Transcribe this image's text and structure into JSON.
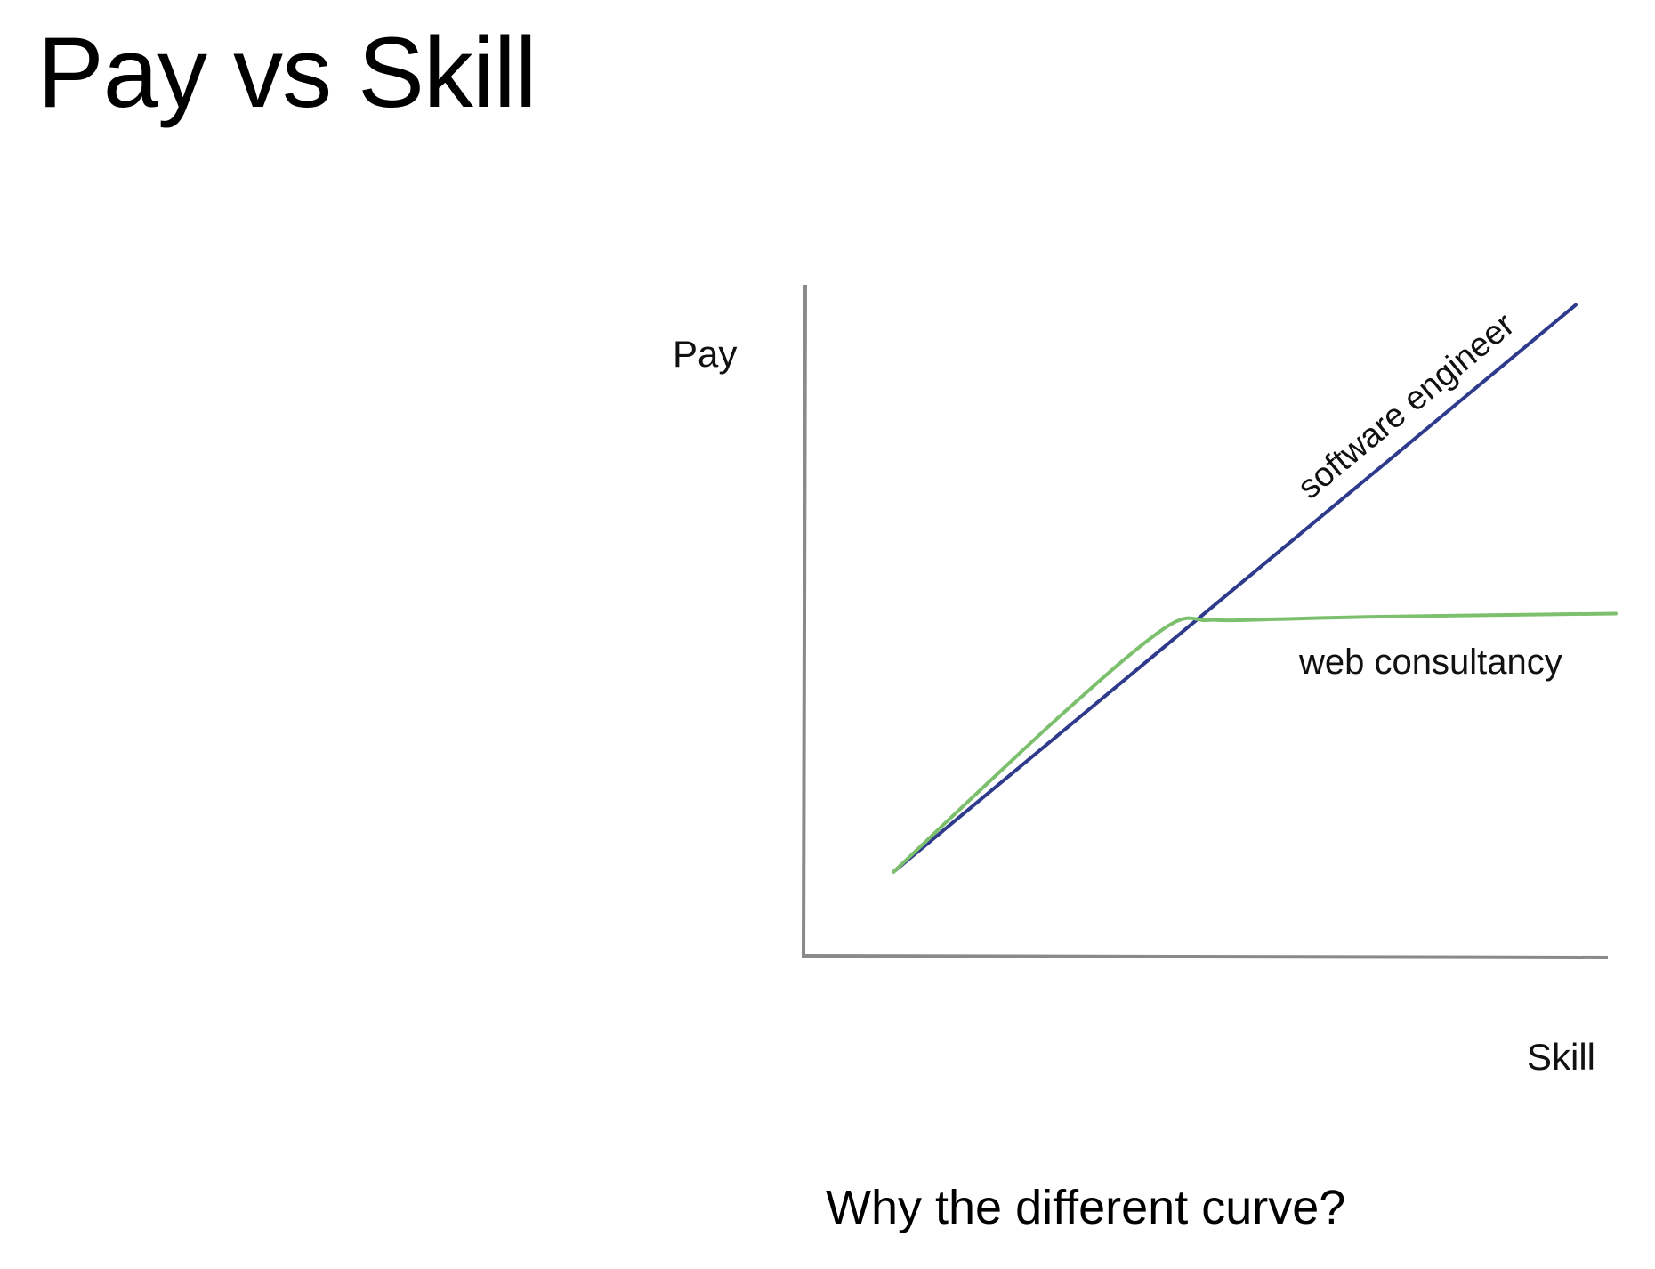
{
  "slide": {
    "title": "Pay vs Skill",
    "caption": "Why the different curve?"
  },
  "chart_data": {
    "type": "line",
    "title": "",
    "xlabel": "Skill",
    "ylabel": "Pay",
    "xlim": [
      0,
      10
    ],
    "ylim": [
      0,
      10
    ],
    "grid": false,
    "axis_color": "#8a8a8a",
    "series": [
      {
        "name": "software engineer",
        "color": "#2e3a8c",
        "x": [
          1.1,
          9.6
        ],
        "y": [
          1.25,
          9.7
        ]
      },
      {
        "name": "web consultancy",
        "color": "#7cc06e",
        "x": [
          1.1,
          3.2,
          4.5,
          5.0,
          5.4,
          7.0,
          10.1
        ],
        "y": [
          1.25,
          3.6,
          4.9,
          5.0,
          5.0,
          5.05,
          5.1
        ]
      }
    ]
  }
}
